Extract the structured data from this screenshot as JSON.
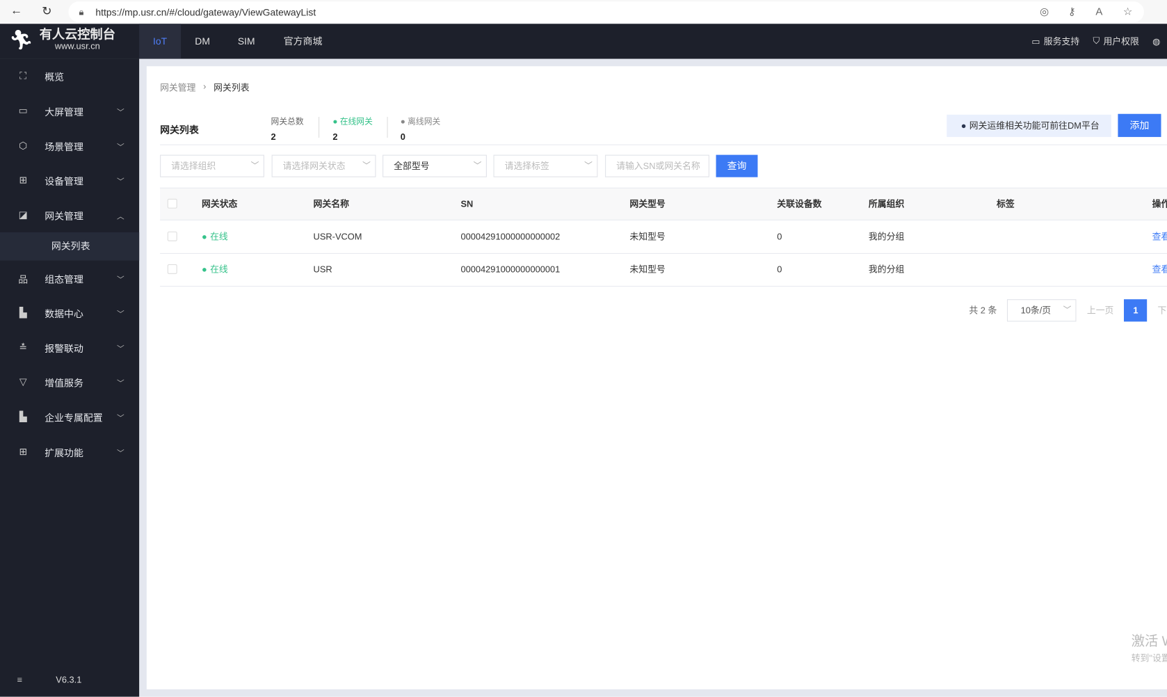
{
  "browser": {
    "url": "https://mp.usr.cn/#/cloud/gateway/ViewGatewayList",
    "icons": [
      "back-icon",
      "reload-icon",
      "lock-icon",
      "location-icon",
      "key-icon",
      "read-aloud-icon",
      "star-icon"
    ]
  },
  "topnav": {
    "logo_title": "有人云控制台",
    "logo_sub": "www.usr.cn",
    "tabs": [
      "IoT",
      "DM",
      "SIM",
      "官方商城"
    ],
    "right": [
      "服务支持",
      "用户权限"
    ]
  },
  "sidebar": {
    "items": [
      {
        "label": "概览",
        "icon": "scan-icon",
        "chevron": ""
      },
      {
        "label": "大屏管理",
        "icon": "monitor-icon",
        "chevron": "﹀"
      },
      {
        "label": "场景管理",
        "icon": "cube-icon",
        "chevron": "﹀"
      },
      {
        "label": "设备管理",
        "icon": "grid-icon",
        "chevron": "﹀"
      },
      {
        "label": "网关管理",
        "icon": "chart-icon",
        "chevron": "︿"
      },
      {
        "label": "组态管理",
        "icon": "topology-icon",
        "chevron": "﹀"
      },
      {
        "label": "数据中心",
        "icon": "bar-chart-icon",
        "chevron": "﹀"
      },
      {
        "label": "报警联动",
        "icon": "alarm-icon",
        "chevron": "﹀"
      },
      {
        "label": "增值服务",
        "icon": "diamond-icon",
        "chevron": "﹀"
      },
      {
        "label": "企业专属配置",
        "icon": "building-icon",
        "chevron": "﹀"
      },
      {
        "label": "扩展功能",
        "icon": "apps-icon",
        "chevron": "﹀"
      }
    ],
    "sub_item": "网关列表",
    "version": "V6.3.1"
  },
  "breadcrumb": [
    "网关管理",
    "网关列表"
  ],
  "page_title": "网关列表",
  "stats": [
    {
      "label": "网关总数",
      "value": "2"
    },
    {
      "label": "● 在线网关",
      "value": "2"
    },
    {
      "label": "● 离线网关",
      "value": "0"
    }
  ],
  "notice": "网关运维相关功能可前往DM平台",
  "add_label": "添加",
  "filters": {
    "org": "请选择组织",
    "status": "请选择网关状态",
    "model": "全部型号",
    "tag": "请选择标签",
    "search": "请输入SN或网关名称",
    "query": "查询"
  },
  "table": {
    "headers": [
      "网关状态",
      "网关名称",
      "SN",
      "网关型号",
      "关联设备数",
      "所属组织",
      "标签",
      "操作"
    ],
    "rows": [
      {
        "status": "在线",
        "name": "USR-VCOM",
        "sn": "00004291000000000002",
        "model": "未知型号",
        "devices": "0",
        "org": "我的分组",
        "tag": "",
        "action": "查看"
      },
      {
        "status": "在线",
        "name": "USR",
        "sn": "00004291000000000001",
        "model": "未知型号",
        "devices": "0",
        "org": "我的分组",
        "tag": "",
        "action": "查看"
      }
    ]
  },
  "pagination": {
    "total": "共 2 条",
    "page_size": "10条/页",
    "prev": "上一页",
    "current": "1",
    "next": "下一页"
  },
  "watermark": {
    "line1": "激活 Windows",
    "line2": "转到\"设置\"以激活 Windows。"
  }
}
